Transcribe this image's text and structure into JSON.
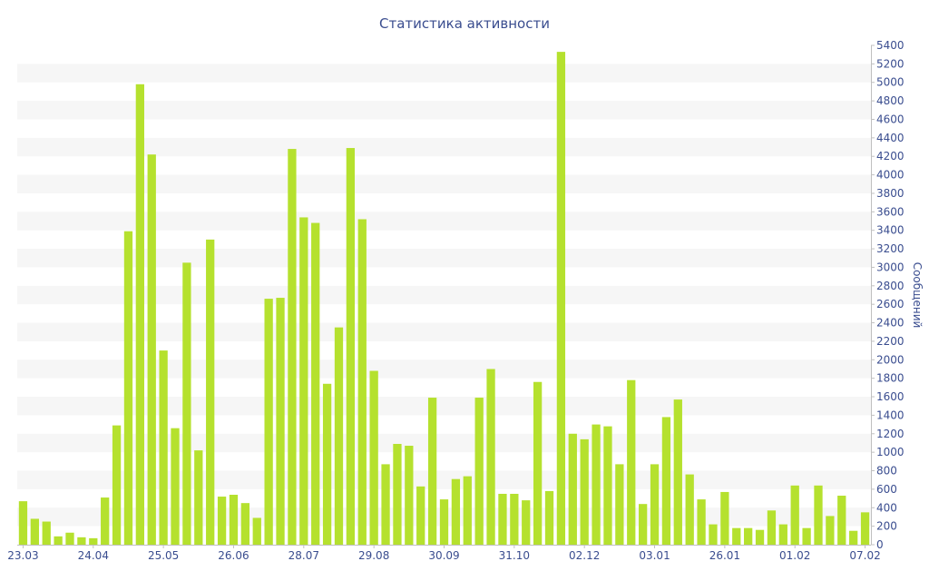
{
  "chart_data": {
    "type": "bar",
    "title": "Статистика активности",
    "xlabel": "",
    "ylabel": "Сообщений",
    "ylim": [
      0,
      5400
    ],
    "y_ticks": [
      0,
      200,
      400,
      600,
      800,
      1000,
      1200,
      1400,
      1600,
      1800,
      2000,
      2200,
      2400,
      2600,
      2800,
      3000,
      3200,
      3400,
      3600,
      3800,
      4000,
      4200,
      4400,
      4600,
      4800,
      5000,
      5200,
      5400
    ],
    "y_axis_side": "right",
    "grid": "horizontal bands",
    "x_tick_labels": [
      {
        "index": 0,
        "label": "23.03"
      },
      {
        "index": 6,
        "label": "24.04"
      },
      {
        "index": 12,
        "label": "25.05"
      },
      {
        "index": 18,
        "label": "26.06"
      },
      {
        "index": 24,
        "label": "28.07"
      },
      {
        "index": 30,
        "label": "29.08"
      },
      {
        "index": 36,
        "label": "30.09"
      },
      {
        "index": 42,
        "label": "31.10"
      },
      {
        "index": 48,
        "label": "02.12"
      },
      {
        "index": 54,
        "label": "03.01"
      },
      {
        "index": 60,
        "label": "26.01"
      },
      {
        "index": 66,
        "label": "01.02"
      },
      {
        "index": 72,
        "label": "07.02"
      }
    ],
    "values": [
      470,
      280,
      250,
      90,
      130,
      80,
      70,
      510,
      1290,
      3390,
      4980,
      4220,
      2100,
      1260,
      3050,
      1020,
      3300,
      520,
      540,
      450,
      290,
      2660,
      2670,
      4280,
      3540,
      3480,
      1740,
      2350,
      4290,
      3520,
      1880,
      870,
      1090,
      1070,
      630,
      1590,
      490,
      710,
      740,
      1590,
      1900,
      550,
      550,
      480,
      1760,
      580,
      5330,
      1200,
      1140,
      1300,
      1280,
      870,
      1780,
      440,
      870,
      1380,
      1570,
      760,
      490,
      220,
      570,
      180,
      180,
      160,
      370,
      220,
      640,
      180,
      640,
      310,
      530,
      150,
      350
    ],
    "series_color": "#b5e12e"
  }
}
